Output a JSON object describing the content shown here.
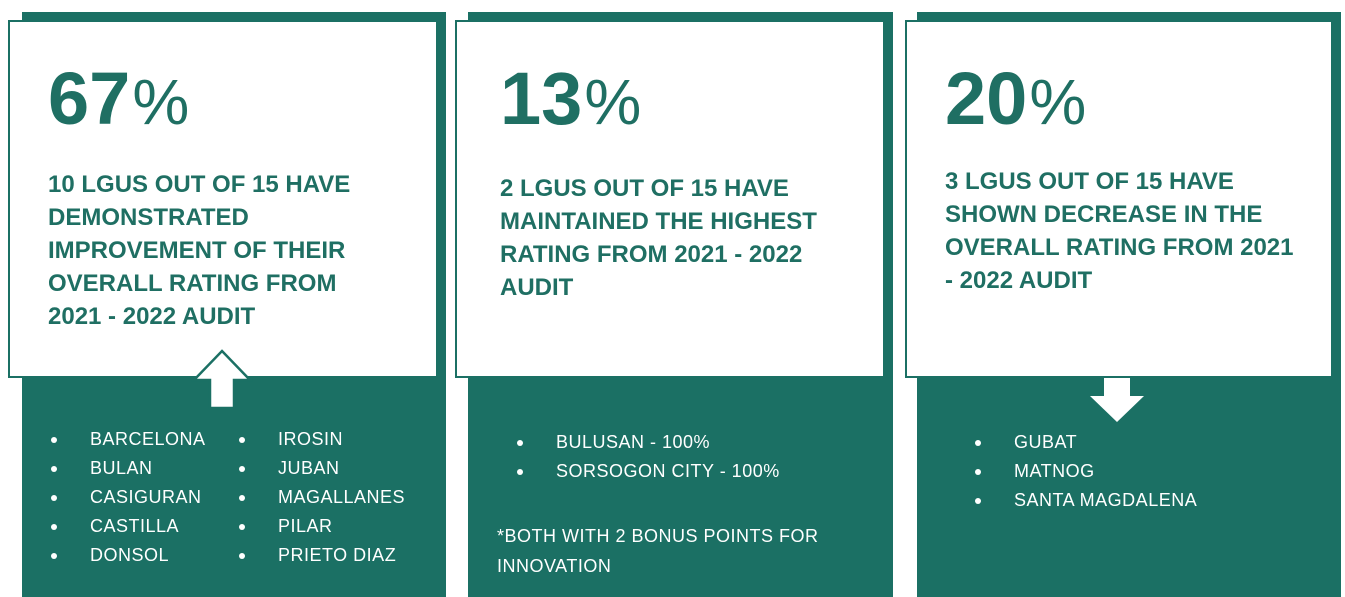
{
  "cards": [
    {
      "stat": "67",
      "unit": "%",
      "description": "10 LGUS OUT OF 15 HAVE DEMONSTRATED IMPROVEMENT OF THEIR OVERALL RATING FROM 2021 - 2022 AUDIT",
      "items": [
        "BARCELONA",
        "BULAN",
        "CASIGURAN",
        "CASTILLA",
        "DONSOL",
        "IROSIN",
        "JUBAN",
        "MAGALLANES",
        "PILAR",
        "PRIETO DIAZ"
      ]
    },
    {
      "stat": "13",
      "unit": "%",
      "description": "2 LGUS OUT OF 15 HAVE MAINTAINED THE HIGHEST RATING FROM 2021 - 2022 AUDIT",
      "items": [
        "BULUSAN -  100%",
        "SORSOGON CITY - 100%"
      ],
      "note": "*BOTH WITH 2 BONUS POINTS FOR INNOVATION"
    },
    {
      "stat": "20",
      "unit": "%",
      "description": "3 LGUS OUT OF 15 HAVE SHOWN DECREASE IN THE OVERALL RATING FROM 2021 - 2022 AUDIT",
      "items": [
        "GUBAT",
        "MATNOG",
        "SANTA MAGDALENA"
      ]
    }
  ]
}
